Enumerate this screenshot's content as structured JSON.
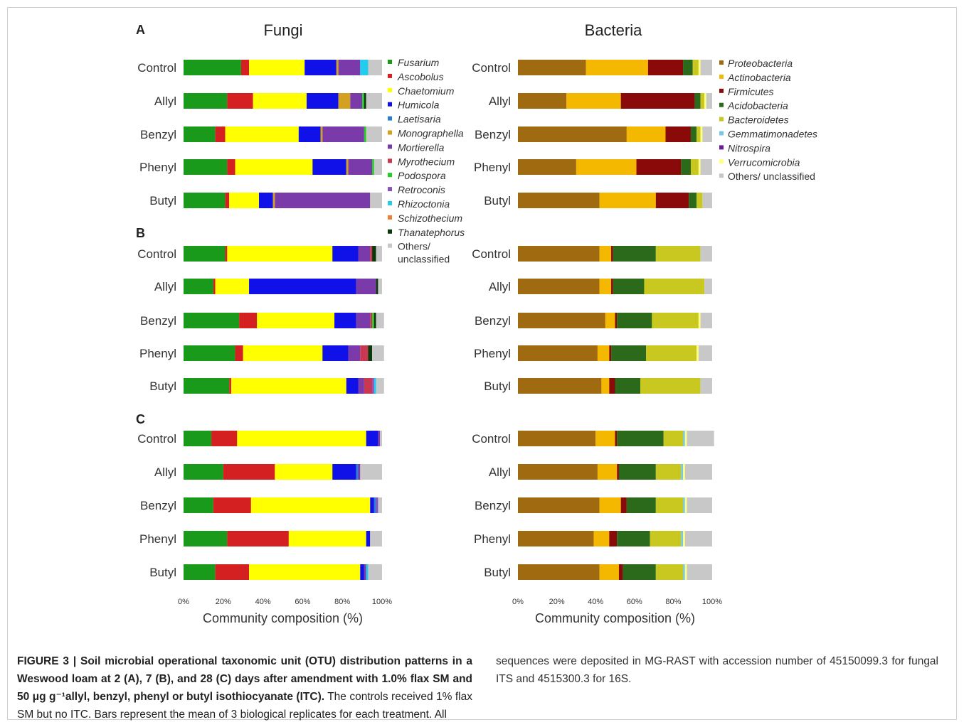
{
  "headers": {
    "fungi": "Fungi",
    "bacteria": "Bacteria"
  },
  "panel_labels": [
    "A",
    "B",
    "C"
  ],
  "x_axis_label": "Community composition (%)",
  "x_ticks": [
    "0%",
    "20%",
    "40%",
    "60%",
    "80%",
    "100%"
  ],
  "colors": {
    "Fusarium": "#1a9a1a",
    "Ascobolus": "#d42020",
    "Chaetomium": "#ffff00",
    "Humicola": "#1010e8",
    "Laetisaria": "#2a7fd4",
    "Monographella": "#d4a020",
    "Mortierella": "#7a3aaa",
    "Myrothecium": "#c83850",
    "Podospora": "#22cc22",
    "Retroconis": "#8a50c0",
    "Rhizoctonia": "#22ccee",
    "Schizothecium": "#f08030",
    "Thanatephorus": "#0a3a0a",
    "Others/ unclassified": "#c8c8c8",
    "Proteobacteria": "#a06a10",
    "Actinobacteria": "#f5b800",
    "Firmicutes": "#8a0a0a",
    "Acidobacteria": "#2a6a1a",
    "Bacteroidetes": "#c8c820",
    "Gemmatimonadetes": "#7ac8e8",
    "Nitrospira": "#6a1a9a",
    "Verrucomicrobia": "#ffff80"
  },
  "legends": {
    "fungi": [
      {
        "label": "Fusarium",
        "italic": true
      },
      {
        "label": "Ascobolus",
        "italic": true
      },
      {
        "label": "Chaetomium",
        "italic": true
      },
      {
        "label": "Humicola",
        "italic": true
      },
      {
        "label": "Laetisaria",
        "italic": true
      },
      {
        "label": "Monographella",
        "italic": true
      },
      {
        "label": "Mortierella",
        "italic": true
      },
      {
        "label": "Myrothecium",
        "italic": true
      },
      {
        "label": "Podospora",
        "italic": true
      },
      {
        "label": "Retroconis",
        "italic": true
      },
      {
        "label": "Rhizoctonia",
        "italic": true
      },
      {
        "label": "Schizothecium",
        "italic": true
      },
      {
        "label": "Thanatephorus",
        "italic": true
      },
      {
        "label": "Others/",
        "label2": "unclassified",
        "key": "Others/ unclassified",
        "italic": false
      }
    ],
    "bacteria": [
      {
        "label": "Proteobacteria",
        "italic": true
      },
      {
        "label": "Actinobacteria",
        "italic": true
      },
      {
        "label": "Firmicutes",
        "italic": true
      },
      {
        "label": "Acidobacteria",
        "italic": true
      },
      {
        "label": "Bacteroidetes",
        "italic": true
      },
      {
        "label": "Gemmatimonadetes",
        "italic": true
      },
      {
        "label": "Nitrospira",
        "italic": true
      },
      {
        "label": "Verrucomicrobia",
        "italic": true
      },
      {
        "label": "Others/ unclassified",
        "italic": false
      }
    ]
  },
  "chart_data": [
    {
      "type": "bar",
      "orientation": "horizontal",
      "stacked": true,
      "panel": "A",
      "group": "Fungi",
      "xlabel": "Community composition (%)",
      "xlim": [
        0,
        100
      ],
      "categories": [
        "Control",
        "Allyl",
        "Benzyl",
        "Phenyl",
        "Butyl"
      ],
      "series": [
        {
          "name": "Fusarium",
          "values": [
            29,
            22,
            16,
            22,
            21
          ]
        },
        {
          "name": "Ascobolus",
          "values": [
            4,
            13,
            5,
            4,
            2
          ]
        },
        {
          "name": "Chaetomium",
          "values": [
            28,
            27,
            37,
            39,
            15
          ]
        },
        {
          "name": "Humicola",
          "values": [
            16,
            16,
            11,
            17,
            7
          ]
        },
        {
          "name": "Laetisaria",
          "values": [
            0,
            0,
            0,
            0,
            0
          ]
        },
        {
          "name": "Monographella",
          "values": [
            1,
            6,
            1,
            1,
            1
          ]
        },
        {
          "name": "Mortierella",
          "values": [
            11,
            6,
            21,
            12,
            48
          ]
        },
        {
          "name": "Myrothecium",
          "values": [
            0,
            0,
            0,
            0,
            0
          ]
        },
        {
          "name": "Podospora",
          "values": [
            0,
            1,
            1,
            1,
            0
          ]
        },
        {
          "name": "Retroconis",
          "values": [
            0,
            0,
            0,
            0,
            0
          ]
        },
        {
          "name": "Rhizoctonia",
          "values": [
            4,
            0,
            0,
            0,
            0
          ]
        },
        {
          "name": "Schizothecium",
          "values": [
            0,
            0,
            0,
            0,
            0
          ]
        },
        {
          "name": "Thanatephorus",
          "values": [
            0,
            1,
            0,
            0,
            0
          ]
        },
        {
          "name": "Others/ unclassified",
          "values": [
            7,
            8,
            8,
            4,
            6
          ]
        }
      ]
    },
    {
      "type": "bar",
      "orientation": "horizontal",
      "stacked": true,
      "panel": "B",
      "group": "Fungi",
      "xlabel": "Community composition (%)",
      "xlim": [
        0,
        100
      ],
      "categories": [
        "Control",
        "Allyl",
        "Benzyl",
        "Phenyl",
        "Butyl"
      ],
      "series": [
        {
          "name": "Fusarium",
          "values": [
            21,
            15,
            28,
            26,
            23
          ]
        },
        {
          "name": "Ascobolus",
          "values": [
            1,
            1,
            9,
            4,
            1
          ]
        },
        {
          "name": "Chaetomium",
          "values": [
            53,
            17,
            39,
            40,
            58
          ]
        },
        {
          "name": "Humicola",
          "values": [
            13,
            54,
            11,
            13,
            6
          ]
        },
        {
          "name": "Laetisaria",
          "values": [
            0,
            0,
            0,
            0,
            0
          ]
        },
        {
          "name": "Monographella",
          "values": [
            0,
            0,
            0,
            0,
            0
          ]
        },
        {
          "name": "Mortierella",
          "values": [
            6,
            10,
            7,
            6,
            3
          ]
        },
        {
          "name": "Myrothecium",
          "values": [
            1,
            0,
            1,
            4,
            4
          ]
        },
        {
          "name": "Podospora",
          "values": [
            0,
            0,
            1,
            0,
            0
          ]
        },
        {
          "name": "Retroconis",
          "values": [
            0,
            0,
            0,
            0,
            1
          ]
        },
        {
          "name": "Rhizoctonia",
          "values": [
            0,
            0,
            0,
            0,
            1
          ]
        },
        {
          "name": "Schizothecium",
          "values": [
            0,
            0,
            0,
            0,
            0
          ]
        },
        {
          "name": "Thanatephorus",
          "values": [
            2,
            1,
            1,
            2,
            0
          ]
        },
        {
          "name": "Others/ unclassified",
          "values": [
            3,
            2,
            4,
            6,
            4
          ]
        }
      ]
    },
    {
      "type": "bar",
      "orientation": "horizontal",
      "stacked": true,
      "panel": "C",
      "group": "Fungi",
      "xlabel": "Community composition (%)",
      "xlim": [
        0,
        100
      ],
      "categories": [
        "Control",
        "Allyl",
        "Benzyl",
        "Phenyl",
        "Butyl"
      ],
      "series": [
        {
          "name": "Fusarium",
          "values": [
            14,
            20,
            15,
            22,
            16
          ]
        },
        {
          "name": "Ascobolus",
          "values": [
            13,
            26,
            19,
            31,
            17
          ]
        },
        {
          "name": "Chaetomium",
          "values": [
            65,
            29,
            60,
            39,
            56
          ]
        },
        {
          "name": "Humicola",
          "values": [
            6,
            12,
            2,
            2,
            2
          ]
        },
        {
          "name": "Laetisaria",
          "values": [
            0,
            1,
            1,
            0,
            0
          ]
        },
        {
          "name": "Monographella",
          "values": [
            0,
            0,
            0,
            0,
            0
          ]
        },
        {
          "name": "Mortierella",
          "values": [
            1,
            1,
            0,
            0,
            1
          ]
        },
        {
          "name": "Myrothecium",
          "values": [
            0,
            0,
            0,
            0,
            0
          ]
        },
        {
          "name": "Podospora",
          "values": [
            0,
            0,
            0,
            0,
            0
          ]
        },
        {
          "name": "Retroconis",
          "values": [
            0,
            0,
            1,
            0,
            0
          ]
        },
        {
          "name": "Rhizoctonia",
          "values": [
            0,
            0,
            0,
            0,
            1
          ]
        },
        {
          "name": "Schizothecium",
          "values": [
            0,
            0,
            0,
            0,
            0
          ]
        },
        {
          "name": "Thanatephorus",
          "values": [
            0,
            0,
            0,
            0,
            0
          ]
        },
        {
          "name": "Others/ unclassified",
          "values": [
            1,
            11,
            2,
            6,
            7
          ]
        }
      ]
    },
    {
      "type": "bar",
      "orientation": "horizontal",
      "stacked": true,
      "panel": "A",
      "group": "Bacteria",
      "xlabel": "Community composition (%)",
      "xlim": [
        0,
        100
      ],
      "categories": [
        "Control",
        "Allyl",
        "Benzyl",
        "Phenyl",
        "Butyl"
      ],
      "series": [
        {
          "name": "Proteobacteria",
          "values": [
            35,
            25,
            56,
            30,
            42
          ]
        },
        {
          "name": "Actinobacteria",
          "values": [
            32,
            28,
            20,
            31,
            29
          ]
        },
        {
          "name": "Firmicutes",
          "values": [
            18,
            38,
            13,
            23,
            17
          ]
        },
        {
          "name": "Acidobacteria",
          "values": [
            5,
            3,
            3,
            5,
            4
          ]
        },
        {
          "name": "Bacteroidetes",
          "values": [
            3,
            2,
            2,
            4,
            3
          ]
        },
        {
          "name": "Gemmatimonadetes",
          "values": [
            0,
            0,
            0,
            0,
            0
          ]
        },
        {
          "name": "Nitrospira",
          "values": [
            0,
            0,
            0,
            0,
            0
          ]
        },
        {
          "name": "Verrucomicrobia",
          "values": [
            1,
            1,
            1,
            1,
            0
          ]
        },
        {
          "name": "Others/ unclassified",
          "values": [
            6,
            3,
            5,
            6,
            5
          ]
        }
      ]
    },
    {
      "type": "bar",
      "orientation": "horizontal",
      "stacked": true,
      "panel": "B",
      "group": "Bacteria",
      "xlabel": "Community composition (%)",
      "xlim": [
        0,
        100
      ],
      "categories": [
        "Control",
        "Allyl",
        "Benzyl",
        "Phenyl",
        "Butyl"
      ],
      "series": [
        {
          "name": "Proteobacteria",
          "values": [
            42,
            42,
            45,
            41,
            43
          ]
        },
        {
          "name": "Actinobacteria",
          "values": [
            6,
            6,
            5,
            6,
            4
          ]
        },
        {
          "name": "Firmicutes",
          "values": [
            1,
            1,
            1,
            1,
            3
          ]
        },
        {
          "name": "Acidobacteria",
          "values": [
            22,
            16,
            18,
            18,
            13
          ]
        },
        {
          "name": "Bacteroidetes",
          "values": [
            23,
            31,
            24,
            26,
            31
          ]
        },
        {
          "name": "Gemmatimonadetes",
          "values": [
            0,
            0,
            0,
            0,
            0
          ]
        },
        {
          "name": "Nitrospira",
          "values": [
            0,
            0,
            0,
            0,
            0
          ]
        },
        {
          "name": "Verrucomicrobia",
          "values": [
            0,
            0,
            1,
            1,
            0
          ]
        },
        {
          "name": "Others/ unclassified",
          "values": [
            6,
            4,
            6,
            7,
            6
          ]
        }
      ]
    },
    {
      "type": "bar",
      "orientation": "horizontal",
      "stacked": true,
      "panel": "C",
      "group": "Bacteria",
      "xlabel": "Community composition (%)",
      "xlim": [
        0,
        100
      ],
      "categories": [
        "Control",
        "Allyl",
        "Benzyl",
        "Phenyl",
        "Butyl"
      ],
      "series": [
        {
          "name": "Proteobacteria",
          "values": [
            40,
            41,
            42,
            39,
            42
          ]
        },
        {
          "name": "Actinobacteria",
          "values": [
            10,
            10,
            11,
            8,
            10
          ]
        },
        {
          "name": "Firmicutes",
          "values": [
            1,
            1,
            3,
            4,
            2
          ]
        },
        {
          "name": "Acidobacteria",
          "values": [
            24,
            19,
            15,
            17,
            17
          ]
        },
        {
          "name": "Bacteroidetes",
          "values": [
            10,
            13,
            14,
            16,
            14
          ]
        },
        {
          "name": "Gemmatimonadetes",
          "values": [
            1,
            1,
            1,
            1,
            1
          ]
        },
        {
          "name": "Nitrospira",
          "values": [
            0,
            0,
            0,
            0,
            0
          ]
        },
        {
          "name": "Verrucomicrobia",
          "values": [
            1,
            1,
            1,
            1,
            1
          ]
        },
        {
          "name": "Others/ unclassified",
          "values": [
            14,
            14,
            13,
            14,
            13
          ]
        }
      ]
    }
  ],
  "caption": {
    "bold": "FIGURE 3 | Soil microbial operational taxonomic unit (OTU) distribution patterns in a Weswood loam at 2 (A), 7 (B), and 28 (C) days after amendment with 1.0% flax SM and 50 μg g⁻¹allyl, benzyl, phenyl or butyl isothiocyanate (ITC).",
    "rest": " The controls received 1% flax SM but no ITC. Bars represent the mean of 3 biological replicates for each treatment. All sequences were deposited in MG-RAST with accession number of 45150099.3 for fungal ITS and 4515300.3 for 16S."
  }
}
